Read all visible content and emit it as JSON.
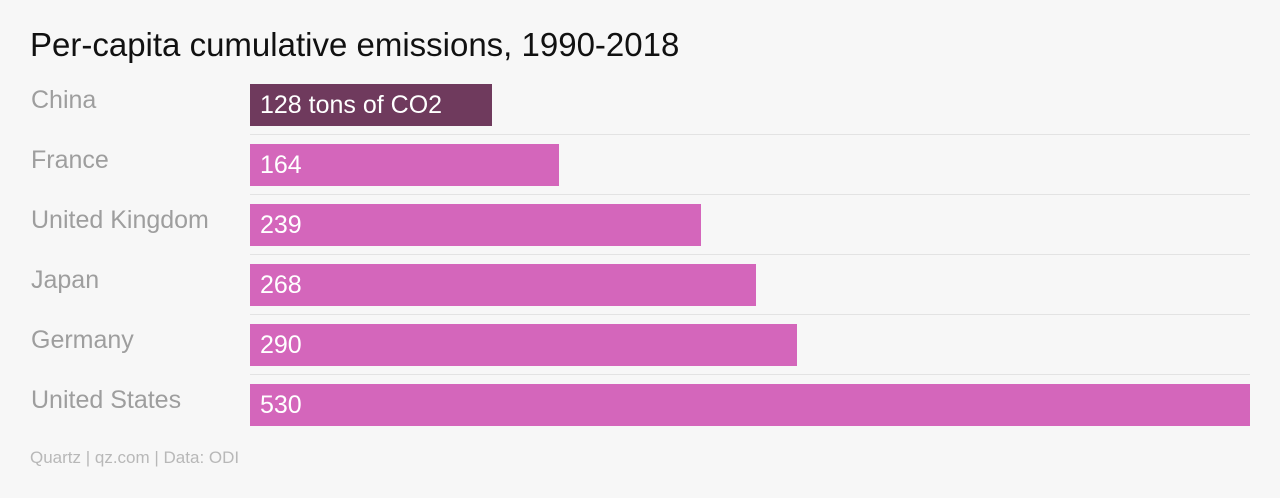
{
  "title": "Per-capita cumulative emissions, 1990-2018",
  "source": "Quartz | qz.com | Data: ODI",
  "colors": {
    "highlight": "#6f3a5d",
    "bar": "#d466bb",
    "background": "#f7f7f7"
  },
  "chart_data": {
    "type": "bar",
    "orientation": "horizontal",
    "title": "Per-capita cumulative emissions, 1990-2018",
    "categories": [
      "China",
      "France",
      "United Kingdom",
      "Japan",
      "Germany",
      "United States"
    ],
    "values": [
      128,
      164,
      239,
      268,
      290,
      530
    ],
    "data_labels": [
      "128 tons of CO2",
      "164",
      "239",
      "268",
      "290",
      "530"
    ],
    "highlighted": "China",
    "xlim": [
      0,
      530
    ],
    "grid": false,
    "legend": "none"
  }
}
